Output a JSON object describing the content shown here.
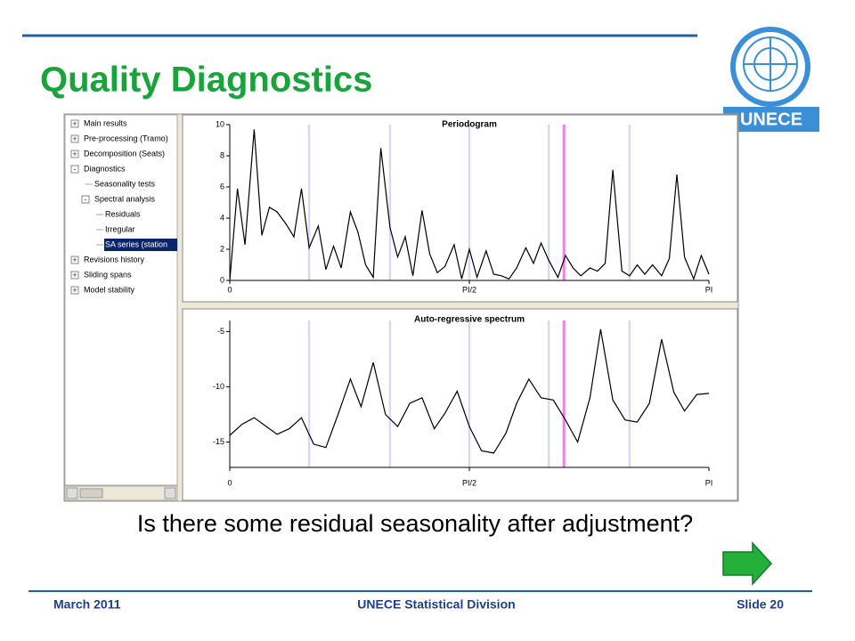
{
  "header": {
    "title": "Quality Diagnostics",
    "logo_text": "UNECE"
  },
  "tree": {
    "items": [
      {
        "label": "Main results",
        "level": 0,
        "expander": "+"
      },
      {
        "label": "Pre-processing (Tramo)",
        "level": 0,
        "expander": "+"
      },
      {
        "label": "Decomposition (Seats)",
        "level": 0,
        "expander": "+"
      },
      {
        "label": "Diagnostics",
        "level": 0,
        "expander": "-"
      },
      {
        "label": "Seasonality tests",
        "level": 1,
        "expander": ""
      },
      {
        "label": "Spectral analysis",
        "level": 1,
        "expander": "-"
      },
      {
        "label": "Residuals",
        "level": 2,
        "expander": ""
      },
      {
        "label": "Irregular",
        "level": 2,
        "expander": ""
      },
      {
        "label": "SA series (station",
        "level": 2,
        "expander": "",
        "selected": true
      },
      {
        "label": "Revisions history",
        "level": 0,
        "expander": "+"
      },
      {
        "label": "Sliding spans",
        "level": 0,
        "expander": "+"
      },
      {
        "label": "Model stability",
        "level": 0,
        "expander": "+"
      }
    ]
  },
  "chart_data": [
    {
      "type": "line",
      "title": "Periodogram",
      "color": "#000000",
      "x": [
        0,
        0.05,
        0.1,
        0.16,
        0.21,
        0.26,
        0.31,
        0.37,
        0.42,
        0.47,
        0.52,
        0.58,
        0.63,
        0.68,
        0.73,
        0.79,
        0.84,
        0.89,
        0.94,
        0.99,
        1.05,
        1.1,
        1.15,
        1.2,
        1.26,
        1.31,
        1.36,
        1.41,
        1.47,
        1.52,
        1.57,
        1.62,
        1.68,
        1.73,
        1.78,
        1.83,
        1.88,
        1.94,
        1.99,
        2.04,
        2.09,
        2.15,
        2.2,
        2.25,
        2.3,
        2.36,
        2.41,
        2.46,
        2.51,
        2.57,
        2.62,
        2.67,
        2.72,
        2.77,
        2.83,
        2.88,
        2.93,
        2.98,
        3.04,
        3.09,
        3.14
      ],
      "values": [
        0,
        5.9,
        2.3,
        9.7,
        2.9,
        4.7,
        4.4,
        3.6,
        2.8,
        5.9,
        2.1,
        3.5,
        0.7,
        2.2,
        0.8,
        4.4,
        3.1,
        1.0,
        0.2,
        8.5,
        3.4,
        1.5,
        2.8,
        0.3,
        4.5,
        1.7,
        0.5,
        0.9,
        2.3,
        0.1,
        2.0,
        0.2,
        1.9,
        0.4,
        0.3,
        0.1,
        0.8,
        2.1,
        1.1,
        2.4,
        1.3,
        0.2,
        1.6,
        0.8,
        0.3,
        0.8,
        0.6,
        1.1,
        7.1,
        0.6,
        0.3,
        1.0,
        0.4,
        1.0,
        0.3,
        1.4,
        6.8,
        1.5,
        0.1,
        1.6,
        0.4
      ],
      "xlim": [
        0,
        3.14
      ],
      "xticks": [
        0,
        {
          "value": 1.57,
          "label": "PI/2"
        },
        {
          "value": 3.14,
          "label": "PI"
        }
      ],
      "ylim": [
        0,
        10
      ],
      "yticks": [
        0,
        2,
        4,
        6,
        8,
        10
      ],
      "seasonal_frequencies": [
        0.52,
        1.05,
        1.57,
        2.09,
        2.62
      ],
      "seasonal_color": "#d8d8f4",
      "trading_day_frequency": 2.19,
      "trading_day_color": "#f080e8"
    },
    {
      "type": "line",
      "title": "Auto-regressive spectrum",
      "color": "#000000",
      "x": [
        0,
        0.08,
        0.16,
        0.24,
        0.31,
        0.39,
        0.47,
        0.55,
        0.63,
        0.71,
        0.79,
        0.86,
        0.94,
        1.02,
        1.1,
        1.18,
        1.26,
        1.34,
        1.41,
        1.49,
        1.57,
        1.65,
        1.73,
        1.81,
        1.88,
        1.96,
        2.04,
        2.12,
        2.2,
        2.28,
        2.36,
        2.43,
        2.51,
        2.59,
        2.67,
        2.75,
        2.83,
        2.91,
        2.98,
        3.06,
        3.14
      ],
      "values": [
        -14.4,
        -13.4,
        -12.8,
        -13.6,
        -14.3,
        -13.8,
        -12.8,
        -15.2,
        -15.5,
        -12.5,
        -9.3,
        -11.8,
        -7.8,
        -12.5,
        -13.6,
        -11.5,
        -11.0,
        -13.8,
        -12.4,
        -10.4,
        -13.6,
        -15.8,
        -16.0,
        -14.2,
        -11.5,
        -9.3,
        -11.0,
        -11.2,
        -13.0,
        -15.0,
        -11.0,
        -4.8,
        -11.2,
        -13.0,
        -13.2,
        -11.5,
        -5.7,
        -10.5,
        -12.2,
        -10.7,
        -10.6
      ],
      "xlim": [
        0,
        3.14
      ],
      "xticks": [
        0,
        {
          "value": 1.57,
          "label": "PI/2"
        },
        {
          "value": 3.14,
          "label": "PI"
        }
      ],
      "ylim": [
        -17.3,
        -4
      ],
      "yticks": [
        -5,
        -10,
        -15
      ],
      "seasonal_frequencies": [
        0.52,
        1.05,
        1.57,
        2.09,
        2.62
      ],
      "seasonal_color": "#d8d8f4",
      "trading_day_frequency": 2.19,
      "trading_day_color": "#f080e8"
    }
  ],
  "question": "Is there some residual seasonality after adjustment?",
  "footer": {
    "date": "March 2011",
    "organization": "UNECE Statistical Division",
    "slide": "Slide 20"
  }
}
